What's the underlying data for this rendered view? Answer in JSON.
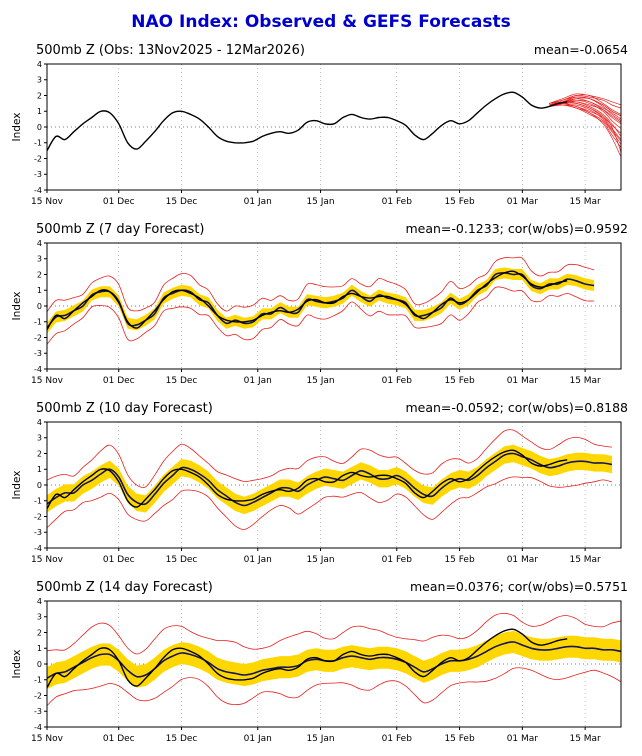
{
  "page_title": "NAO Index: Observed & GEFS Forecasts",
  "colors": {
    "title": "#0000cc",
    "observed": "#000000",
    "ensemble_mean": "#14145a",
    "envelope": "#e82020",
    "band": "#ffd700",
    "grid": "#999999",
    "axis": "#000000"
  },
  "chart_data": {
    "type": "line",
    "ylabel": "Index",
    "ylim": [
      -4,
      4
    ],
    "y_ticks": [
      -4,
      -3,
      -2,
      -1,
      0,
      1,
      2,
      3,
      4
    ],
    "x_domain": [
      0,
      128
    ],
    "x_tick_days": [
      0,
      16,
      30,
      47,
      61,
      78,
      92,
      106,
      120
    ],
    "x_tick_labels": [
      "15 Nov",
      "01 Dec",
      "15 Dec",
      "01 Jan",
      "15 Jan",
      "01 Feb",
      "15 Feb",
      "01 Mar",
      "15 Mar"
    ],
    "observed": {
      "x_start": 0,
      "x_step": 2,
      "y": [
        -1.5,
        -0.6,
        -0.8,
        -0.3,
        0.2,
        0.6,
        1.0,
        0.9,
        0.2,
        -1.0,
        -1.4,
        -0.9,
        -0.3,
        0.4,
        0.9,
        1.0,
        0.8,
        0.5,
        0.0,
        -0.6,
        -0.9,
        -1.0,
        -1.0,
        -0.9,
        -0.6,
        -0.4,
        -0.3,
        -0.4,
        -0.2,
        0.3,
        0.4,
        0.2,
        0.2,
        0.6,
        0.8,
        0.6,
        0.5,
        0.6,
        0.6,
        0.4,
        0.1,
        -0.5,
        -0.8,
        -0.4,
        0.1,
        0.4,
        0.2,
        0.4,
        0.9,
        1.4,
        1.8,
        2.1,
        2.2,
        1.9,
        1.4,
        1.2,
        1.3,
        1.5,
        1.6
      ]
    },
    "panels": [
      {
        "title": "500mb Z (Obs: 13Nov2025 - 12Mar2026)",
        "annotation": "mean=-0.0654",
        "members": {
          "x": [
            112,
            115,
            118,
            121,
            124,
            126,
            128
          ],
          "y": [
            [
              1.4,
              1.6,
              1.9,
              1.8,
              1.4,
              1.0,
              0.7
            ],
            [
              1.3,
              1.5,
              1.6,
              1.4,
              1.1,
              0.7,
              0.3
            ],
            [
              1.5,
              1.7,
              2.0,
              1.9,
              1.7,
              1.4,
              1.2
            ],
            [
              1.4,
              1.5,
              1.3,
              1.0,
              0.6,
              0.1,
              -0.4
            ],
            [
              1.3,
              1.6,
              1.7,
              1.5,
              1.0,
              0.4,
              -0.1
            ],
            [
              1.4,
              1.4,
              1.4,
              1.1,
              0.5,
              -0.2,
              -0.9
            ],
            [
              1.5,
              1.6,
              1.8,
              1.6,
              1.1,
              0.6,
              0.2
            ],
            [
              1.3,
              1.4,
              1.2,
              0.8,
              0.3,
              -0.5,
              -1.3
            ],
            [
              1.4,
              1.6,
              1.6,
              1.3,
              0.8,
              0.2,
              -0.6
            ],
            [
              1.5,
              1.8,
              2.1,
              2.0,
              1.8,
              1.6,
              1.4
            ],
            [
              1.4,
              1.5,
              1.5,
              1.2,
              0.7,
              0.0,
              -1.6
            ],
            [
              1.3,
              1.5,
              1.8,
              1.8,
              1.4,
              1.0,
              0.7
            ],
            [
              1.4,
              1.4,
              1.3,
              0.9,
              0.4,
              -0.3,
              -1.1
            ],
            [
              1.5,
              1.7,
              2.0,
              2.0,
              1.5,
              1.1,
              0.8
            ],
            [
              1.4,
              1.6,
              1.5,
              1.2,
              0.6,
              -0.1,
              -0.8
            ],
            [
              1.3,
              1.4,
              1.2,
              0.9,
              0.2,
              -0.7,
              -1.9
            ],
            [
              1.5,
              1.7,
              1.9,
              1.8,
              1.3,
              0.8,
              0.4
            ],
            [
              1.4,
              1.6,
              1.7,
              1.6,
              1.2,
              0.9,
              0.5
            ]
          ]
        }
      },
      {
        "title": "500mb Z (7 day Forecast)",
        "annotation": "mean=-0.1233; cor(w/obs)=0.9592",
        "band_hw": 0.35,
        "env_hw": 0.9,
        "mean": {
          "x_start": 0,
          "x_step": 2,
          "y": [
            -1.4,
            -0.7,
            -0.6,
            -0.3,
            0.0,
            0.7,
            0.9,
            0.9,
            0.3,
            -1.1,
            -1.2,
            -0.9,
            -0.5,
            0.5,
            0.8,
            1.0,
            0.9,
            0.4,
            0.2,
            -0.6,
            -1.1,
            -0.9,
            -1.1,
            -1.0,
            -0.5,
            -0.5,
            -0.1,
            -0.4,
            -0.4,
            0.4,
            0.3,
            0.2,
            0.3,
            0.5,
            1.0,
            0.6,
            0.3,
            0.7,
            0.5,
            0.4,
            0.2,
            -0.6,
            -0.6,
            -0.4,
            -0.1,
            0.5,
            0.1,
            0.4,
            1.0,
            1.3,
            2.0,
            2.1,
            2.0,
            2.0,
            1.3,
            1.1,
            1.4,
            1.4,
            1.7,
            1.6,
            1.4,
            1.3
          ]
        }
      },
      {
        "title": "500mb Z (10 day Forecast)",
        "annotation": "mean=-0.0592; cor(w/obs)=0.8188",
        "band_hw": 0.55,
        "env_hw": 1.3,
        "mean": {
          "x_start": 0,
          "x_step": 2,
          "y": [
            -1.2,
            -0.8,
            -0.5,
            -0.5,
            0.0,
            0.3,
            0.7,
            1.0,
            0.5,
            -0.6,
            -1.1,
            -1.2,
            -0.6,
            0.1,
            0.6,
            1.1,
            1.0,
            0.7,
            0.3,
            -0.3,
            -0.7,
            -1.1,
            -1.3,
            -1.1,
            -0.8,
            -0.5,
            -0.2,
            -0.2,
            -0.4,
            0.0,
            0.3,
            0.5,
            0.4,
            0.3,
            0.6,
            0.9,
            0.7,
            0.4,
            0.4,
            0.6,
            0.3,
            -0.2,
            -0.6,
            -0.7,
            -0.2,
            0.2,
            0.4,
            0.3,
            0.6,
            1.1,
            1.5,
            1.9,
            2.0,
            1.8,
            1.6,
            1.3,
            1.1,
            1.2,
            1.4,
            1.5,
            1.5,
            1.4,
            1.4,
            1.3
          ]
        }
      },
      {
        "title": "500mb Z (14 day Forecast)",
        "annotation": "mean=0.0376; cor(w/obs)=0.5751",
        "band_hw": 0.7,
        "env_hw": 1.7,
        "mean": {
          "x_start": 0,
          "x_step": 2,
          "y": [
            -0.9,
            -0.6,
            -0.5,
            -0.2,
            0.1,
            0.4,
            0.6,
            0.6,
            0.2,
            -0.4,
            -0.8,
            -0.7,
            -0.3,
            0.2,
            0.5,
            0.7,
            0.6,
            0.4,
            0.1,
            -0.3,
            -0.5,
            -0.6,
            -0.7,
            -0.6,
            -0.4,
            -0.3,
            -0.2,
            -0.2,
            -0.1,
            0.2,
            0.3,
            0.2,
            0.2,
            0.4,
            0.5,
            0.4,
            0.3,
            0.4,
            0.4,
            0.3,
            0.1,
            -0.2,
            -0.5,
            -0.3,
            0.0,
            0.2,
            0.2,
            0.3,
            0.5,
            0.8,
            1.1,
            1.3,
            1.4,
            1.2,
            1.0,
            0.9,
            0.9,
            1.0,
            1.1,
            1.1,
            1.0,
            1.0,
            0.9,
            0.9,
            0.8
          ]
        }
      }
    ]
  }
}
